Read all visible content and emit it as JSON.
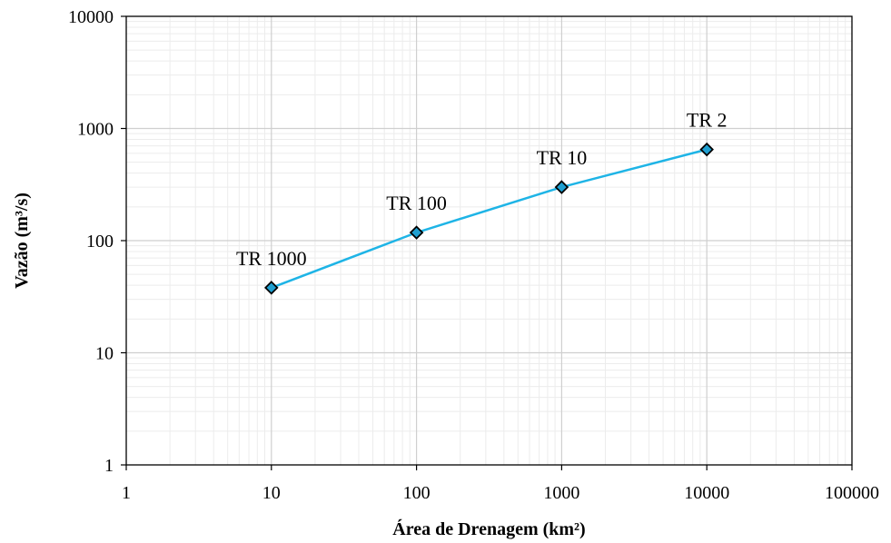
{
  "chart_data": {
    "type": "line",
    "title": "",
    "xlabel": "Área de Drenagem (km²)",
    "ylabel": "Vazão (m³/s)",
    "x_scale": "log",
    "y_scale": "log",
    "xlim": [
      1,
      100000
    ],
    "ylim": [
      1,
      10000
    ],
    "x_ticks": [
      "1",
      "10",
      "100",
      "1000",
      "10000",
      "100000"
    ],
    "y_ticks": [
      "1",
      "10",
      "100",
      "1000",
      "10000"
    ],
    "grid": true,
    "legend": "none",
    "series": [
      {
        "color": "#1EB4E6",
        "marker": "diamond",
        "marker_fill": "#1F9FD0",
        "points": [
          {
            "x": 10,
            "y": 38,
            "label": "TR 1000"
          },
          {
            "x": 100,
            "y": 118,
            "label": "TR 100"
          },
          {
            "x": 1000,
            "y": 300,
            "label": "TR 10"
          },
          {
            "x": 10000,
            "y": 650,
            "label": "TR 2"
          }
        ]
      }
    ]
  }
}
